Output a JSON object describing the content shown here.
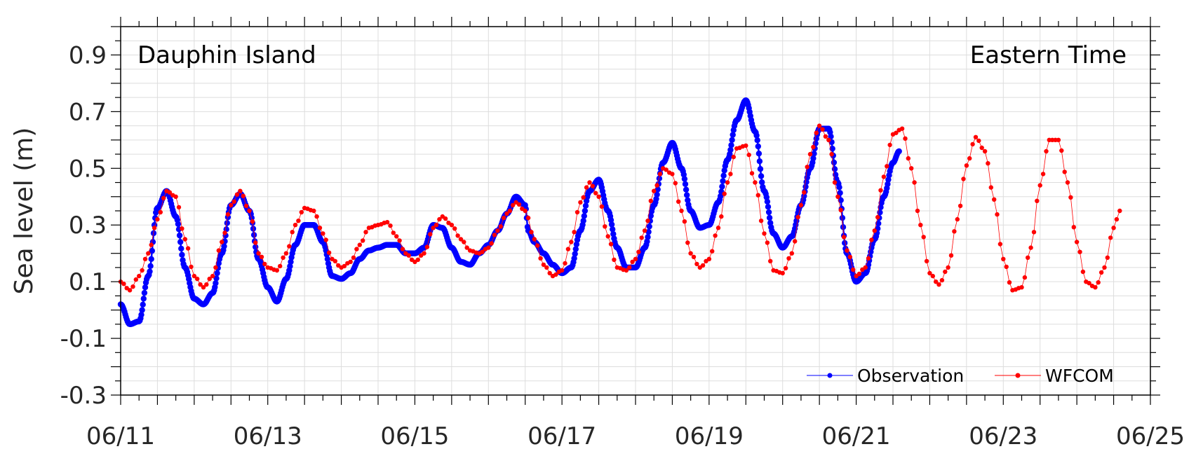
{
  "chart_data": {
    "type": "line",
    "title": "",
    "xlabel": "",
    "ylabel": "Sea level (m)",
    "xlim": [
      "06/11",
      "06/25"
    ],
    "ylim": [
      -0.3,
      1.0
    ],
    "x_tick_labels": [
      "06/11",
      "06/13",
      "06/15",
      "06/17",
      "06/19",
      "06/21",
      "06/23",
      "06/25"
    ],
    "y_ticks": [
      -0.3,
      -0.1,
      0.1,
      0.3,
      0.5,
      0.7,
      0.9
    ],
    "y_tick_labels": [
      "-0.3",
      "-0.1",
      "0.1",
      "0.3",
      "0.5",
      "0.7",
      "0.9"
    ],
    "grid": true,
    "legend_position": "bottom-right",
    "annotations": {
      "station": "Dauphin Island",
      "time_zone": "Eastern Time"
    },
    "series": [
      {
        "name": "Observation",
        "color": "#0000ff",
        "marker": "dot",
        "line_width": "thick",
        "points": [
          [
            "06/11 00:00",
            0.02
          ],
          [
            "06/11 03:00",
            -0.05
          ],
          [
            "06/11 06:00",
            -0.04
          ],
          [
            "06/11 09:00",
            0.12
          ],
          [
            "06/11 12:00",
            0.36
          ],
          [
            "06/11 15:00",
            0.42
          ],
          [
            "06/11 18:00",
            0.33
          ],
          [
            "06/11 21:00",
            0.15
          ],
          [
            "06/12 00:00",
            0.04
          ],
          [
            "06/12 03:00",
            0.02
          ],
          [
            "06/12 06:00",
            0.06
          ],
          [
            "06/12 09:00",
            0.2
          ],
          [
            "06/12 12:00",
            0.37
          ],
          [
            "06/12 15:00",
            0.41
          ],
          [
            "06/12 18:00",
            0.35
          ],
          [
            "06/12 21:00",
            0.18
          ],
          [
            "06/13 00:00",
            0.08
          ],
          [
            "06/13 03:00",
            0.03
          ],
          [
            "06/13 06:00",
            0.11
          ],
          [
            "06/13 09:00",
            0.23
          ],
          [
            "06/13 12:00",
            0.3
          ],
          [
            "06/13 15:00",
            0.3
          ],
          [
            "06/13 18:00",
            0.24
          ],
          [
            "06/13 21:00",
            0.12
          ],
          [
            "06/14 00:00",
            0.11
          ],
          [
            "06/14 03:00",
            0.13
          ],
          [
            "06/14 06:00",
            0.18
          ],
          [
            "06/14 09:00",
            0.21
          ],
          [
            "06/14 12:00",
            0.22
          ],
          [
            "06/14 15:00",
            0.23
          ],
          [
            "06/14 18:00",
            0.23
          ],
          [
            "06/14 21:00",
            0.2
          ],
          [
            "06/15 00:00",
            0.2
          ],
          [
            "06/15 03:00",
            0.22
          ],
          [
            "06/15 06:00",
            0.3
          ],
          [
            "06/15 09:00",
            0.29
          ],
          [
            "06/15 12:00",
            0.22
          ],
          [
            "06/15 15:00",
            0.17
          ],
          [
            "06/15 18:00",
            0.16
          ],
          [
            "06/15 21:00",
            0.2
          ],
          [
            "06/16 00:00",
            0.23
          ],
          [
            "06/16 03:00",
            0.28
          ],
          [
            "06/16 06:00",
            0.34
          ],
          [
            "06/16 09:00",
            0.4
          ],
          [
            "06/16 12:00",
            0.37
          ],
          [
            "06/16 13:00",
            0.28
          ],
          [
            "06/16 15:00",
            0.24
          ],
          [
            "06/16 18:00",
            0.2
          ],
          [
            "06/16 21:00",
            0.16
          ],
          [
            "06/17 00:00",
            0.13
          ],
          [
            "06/17 03:00",
            0.15
          ],
          [
            "06/17 06:00",
            0.28
          ],
          [
            "06/17 09:00",
            0.42
          ],
          [
            "06/17 12:00",
            0.46
          ],
          [
            "06/17 15:00",
            0.35
          ],
          [
            "06/17 18:00",
            0.22
          ],
          [
            "06/17 21:00",
            0.15
          ],
          [
            "06/18 00:00",
            0.15
          ],
          [
            "06/18 03:00",
            0.22
          ],
          [
            "06/18 06:00",
            0.37
          ],
          [
            "06/18 09:00",
            0.52
          ],
          [
            "06/18 12:00",
            0.59
          ],
          [
            "06/18 15:00",
            0.5
          ],
          [
            "06/18 18:00",
            0.35
          ],
          [
            "06/18 21:00",
            0.29
          ],
          [
            "06/19 00:00",
            0.3
          ],
          [
            "06/19 03:00",
            0.38
          ],
          [
            "06/19 06:00",
            0.53
          ],
          [
            "06/19 09:00",
            0.67
          ],
          [
            "06/19 12:00",
            0.74
          ],
          [
            "06/19 15:00",
            0.63
          ],
          [
            "06/19 18:00",
            0.42
          ],
          [
            "06/19 21:00",
            0.27
          ],
          [
            "06/20 00:00",
            0.22
          ],
          [
            "06/20 03:00",
            0.26
          ],
          [
            "06/20 06:00",
            0.37
          ],
          [
            "06/20 09:00",
            0.5
          ],
          [
            "06/20 12:00",
            0.64
          ],
          [
            "06/20 15:00",
            0.64
          ],
          [
            "06/20 18:00",
            0.45
          ],
          [
            "06/20 21:00",
            0.2
          ],
          [
            "06/21 00:00",
            0.1
          ],
          [
            "06/21 03:00",
            0.13
          ],
          [
            "06/21 06:00",
            0.25
          ],
          [
            "06/21 09:00",
            0.4
          ],
          [
            "06/21 12:00",
            0.52
          ],
          [
            "06/21 14:00",
            0.56
          ]
        ]
      },
      {
        "name": "WFCOM",
        "color": "#ff0000",
        "marker": "dot",
        "line_width": "thin",
        "points": [
          [
            "06/11 00:00",
            0.1
          ],
          [
            "06/11 03:00",
            0.07
          ],
          [
            "06/11 06:00",
            0.12
          ],
          [
            "06/11 09:00",
            0.2
          ],
          [
            "06/11 12:00",
            0.32
          ],
          [
            "06/11 15:00",
            0.42
          ],
          [
            "06/11 18:00",
            0.4
          ],
          [
            "06/11 21:00",
            0.25
          ],
          [
            "06/12 00:00",
            0.12
          ],
          [
            "06/12 03:00",
            0.08
          ],
          [
            "06/12 06:00",
            0.12
          ],
          [
            "06/12 09:00",
            0.24
          ],
          [
            "06/12 12:00",
            0.37
          ],
          [
            "06/12 15:00",
            0.42
          ],
          [
            "06/12 18:00",
            0.35
          ],
          [
            "06/12 21:00",
            0.2
          ],
          [
            "06/13 00:00",
            0.15
          ],
          [
            "06/13 03:00",
            0.14
          ],
          [
            "06/13 06:00",
            0.2
          ],
          [
            "06/13 09:00",
            0.3
          ],
          [
            "06/13 12:00",
            0.36
          ],
          [
            "06/13 15:00",
            0.35
          ],
          [
            "06/13 18:00",
            0.27
          ],
          [
            "06/13 21:00",
            0.18
          ],
          [
            "06/14 00:00",
            0.15
          ],
          [
            "06/14 03:00",
            0.17
          ],
          [
            "06/14 06:00",
            0.23
          ],
          [
            "06/14 09:00",
            0.29
          ],
          [
            "06/14 12:00",
            0.3
          ],
          [
            "06/14 15:00",
            0.31
          ],
          [
            "06/14 18:00",
            0.26
          ],
          [
            "06/14 21:00",
            0.2
          ],
          [
            "06/15 00:00",
            0.17
          ],
          [
            "06/15 03:00",
            0.2
          ],
          [
            "06/15 06:00",
            0.29
          ],
          [
            "06/15 09:00",
            0.33
          ],
          [
            "06/15 12:00",
            0.3
          ],
          [
            "06/15 15:00",
            0.25
          ],
          [
            "06/15 18:00",
            0.21
          ],
          [
            "06/15 21:00",
            0.2
          ],
          [
            "06/16 00:00",
            0.22
          ],
          [
            "06/16 03:00",
            0.28
          ],
          [
            "06/16 06:00",
            0.34
          ],
          [
            "06/16 09:00",
            0.38
          ],
          [
            "06/16 12:00",
            0.35
          ],
          [
            "06/16 15:00",
            0.25
          ],
          [
            "06/16 18:00",
            0.16
          ],
          [
            "06/16 21:00",
            0.12
          ],
          [
            "06/17 00:00",
            0.14
          ],
          [
            "06/17 03:00",
            0.24
          ],
          [
            "06/17 06:00",
            0.38
          ],
          [
            "06/17 09:00",
            0.45
          ],
          [
            "06/17 12:00",
            0.4
          ],
          [
            "06/17 15:00",
            0.26
          ],
          [
            "06/17 18:00",
            0.15
          ],
          [
            "06/17 21:00",
            0.14
          ],
          [
            "06/18 00:00",
            0.18
          ],
          [
            "06/18 03:00",
            0.28
          ],
          [
            "06/18 06:00",
            0.42
          ],
          [
            "06/18 09:00",
            0.5
          ],
          [
            "06/18 12:00",
            0.48
          ],
          [
            "06/18 15:00",
            0.35
          ],
          [
            "06/18 18:00",
            0.2
          ],
          [
            "06/18 21:00",
            0.15
          ],
          [
            "06/19 00:00",
            0.18
          ],
          [
            "06/19 03:00",
            0.29
          ],
          [
            "06/19 06:00",
            0.45
          ],
          [
            "06/19 09:00",
            0.57
          ],
          [
            "06/19 12:00",
            0.58
          ],
          [
            "06/19 15:00",
            0.45
          ],
          [
            "06/19 18:00",
            0.27
          ],
          [
            "06/19 21:00",
            0.14
          ],
          [
            "06/20 00:00",
            0.13
          ],
          [
            "06/20 03:00",
            0.2
          ],
          [
            "06/20 06:00",
            0.37
          ],
          [
            "06/20 09:00",
            0.55
          ],
          [
            "06/20 12:00",
            0.65
          ],
          [
            "06/20 15:00",
            0.6
          ],
          [
            "06/20 18:00",
            0.4
          ],
          [
            "06/20 21:00",
            0.21
          ],
          [
            "06/21 00:00",
            0.12
          ],
          [
            "06/21 03:00",
            0.15
          ],
          [
            "06/21 06:00",
            0.28
          ],
          [
            "06/21 09:00",
            0.47
          ],
          [
            "06/21 12:00",
            0.62
          ],
          [
            "06/21 15:00",
            0.64
          ],
          [
            "06/21 18:00",
            0.5
          ],
          [
            "06/21 21:00",
            0.3
          ],
          [
            "06/22 00:00",
            0.13
          ],
          [
            "06/22 03:00",
            0.09
          ],
          [
            "06/22 06:00",
            0.15
          ],
          [
            "06/22 09:00",
            0.32
          ],
          [
            "06/22 12:00",
            0.51
          ],
          [
            "06/22 15:00",
            0.61
          ],
          [
            "06/22 18:00",
            0.56
          ],
          [
            "06/22 21:00",
            0.39
          ],
          [
            "06/23 00:00",
            0.18
          ],
          [
            "06/23 03:00",
            0.07
          ],
          [
            "06/23 06:00",
            0.08
          ],
          [
            "06/23 09:00",
            0.22
          ],
          [
            "06/23 12:00",
            0.44
          ],
          [
            "06/23 15:00",
            0.6
          ],
          [
            "06/23 18:00",
            0.6
          ],
          [
            "06/23 21:00",
            0.45
          ],
          [
            "06/24 00:00",
            0.24
          ],
          [
            "06/24 03:00",
            0.1
          ],
          [
            "06/24 06:00",
            0.08
          ],
          [
            "06/24 09:00",
            0.15
          ],
          [
            "06/24 12:00",
            0.29
          ],
          [
            "06/24 14:00",
            0.35
          ]
        ]
      }
    ]
  }
}
